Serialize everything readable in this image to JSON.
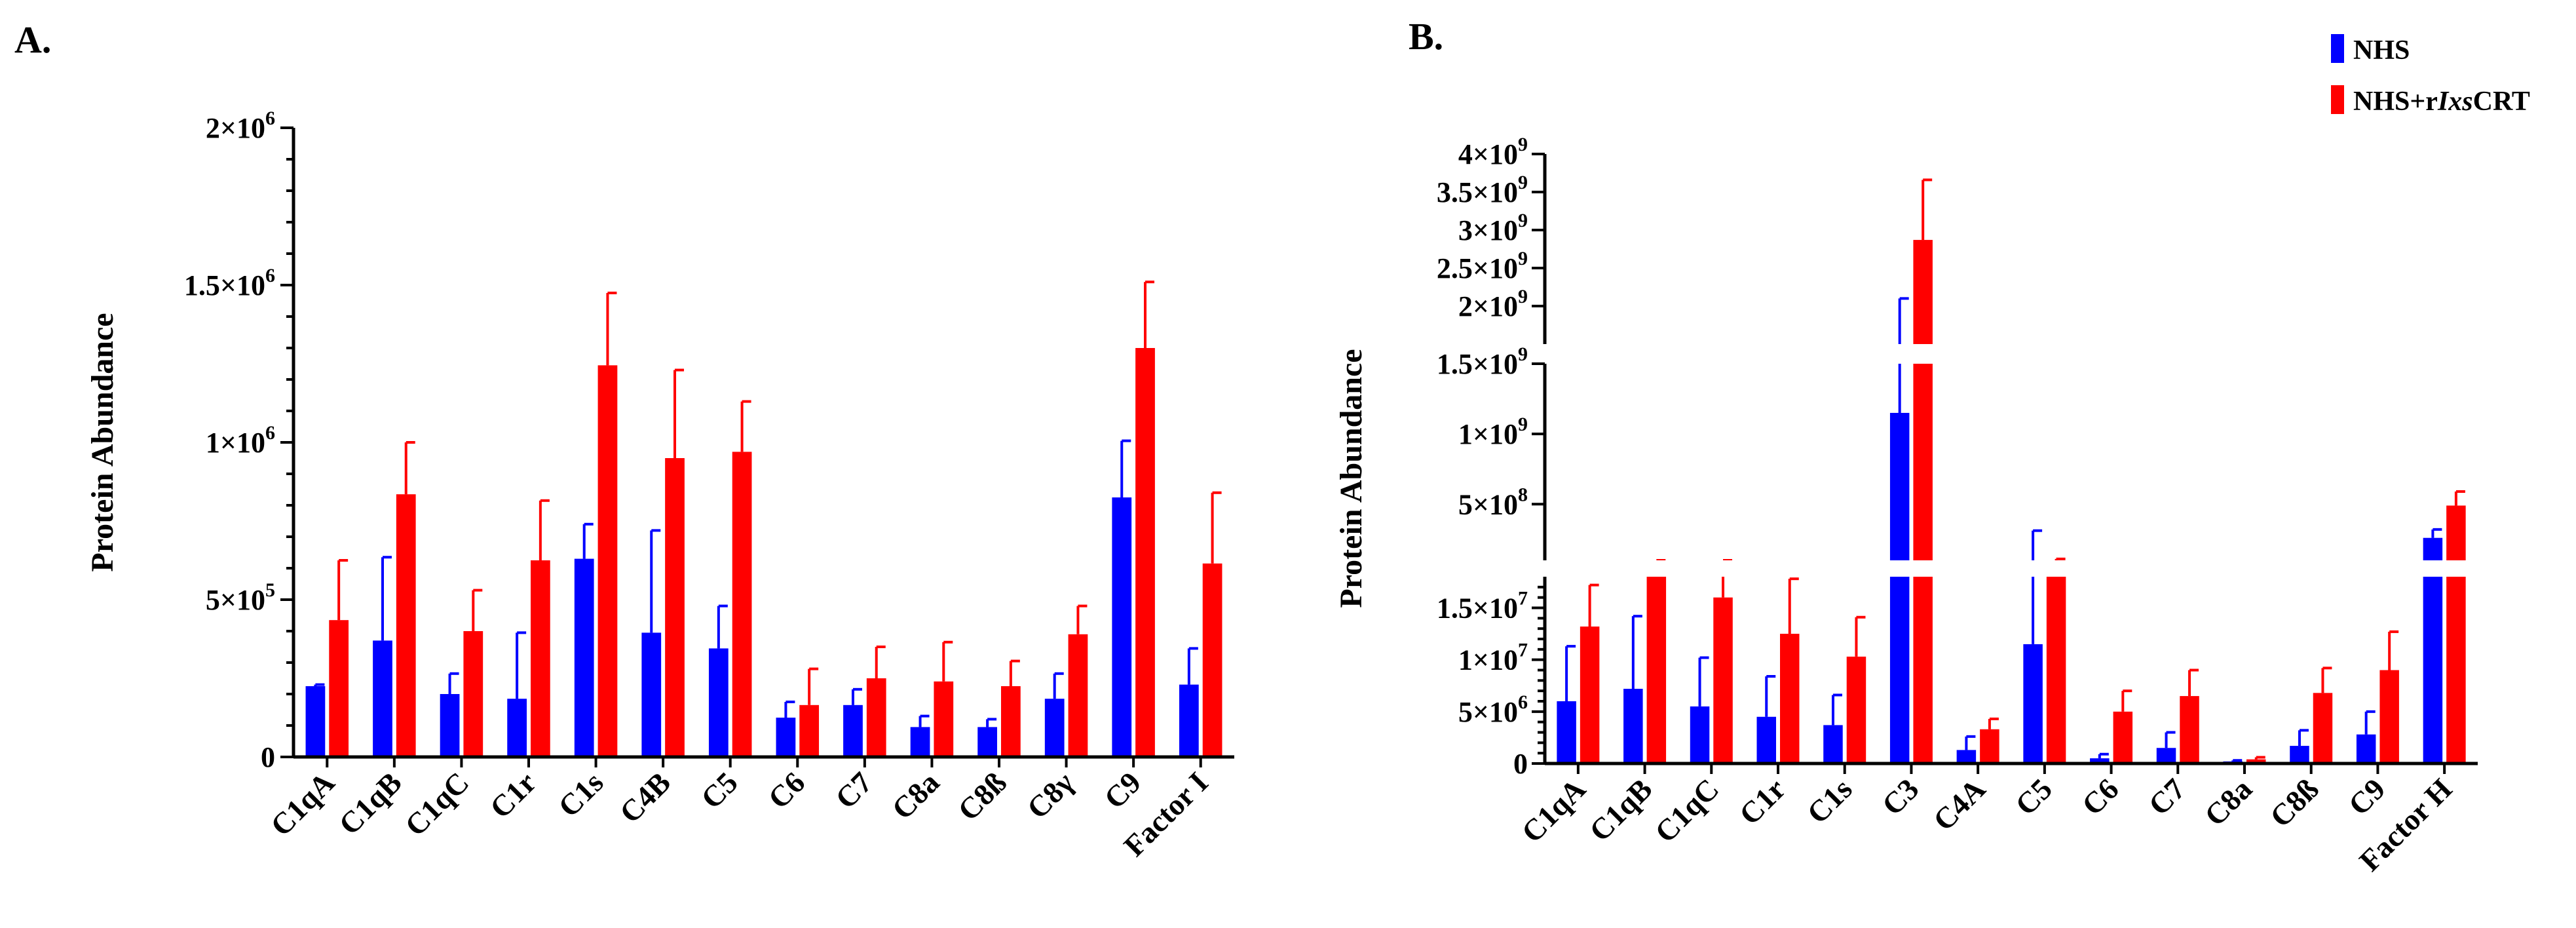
{
  "colors": {
    "nhs": "#0000FF",
    "treated": "#FF0000",
    "axis": "#000000"
  },
  "legend": {
    "entries": [
      {
        "name": "NHS",
        "text": "NHS"
      },
      {
        "name": "NHS+rIxsCRT",
        "prefix": "NHS+r",
        "italic": "Ixs",
        "suffix": "CRT"
      }
    ]
  },
  "chart_data": [
    {
      "type": "bar",
      "panel": "A.",
      "ylabel": "Protein Abundance",
      "ylim": [
        0,
        2000000
      ],
      "yticks": [
        {
          "value": 0,
          "label": "0"
        },
        {
          "value": 500000,
          "label": "5×10",
          "exp": "5"
        },
        {
          "value": 1000000,
          "label": "1×10",
          "exp": "6"
        },
        {
          "value": 1500000,
          "label": "1.5×10",
          "exp": "6"
        },
        {
          "value": 2000000,
          "label": "2×10",
          "exp": "6"
        }
      ],
      "categories": [
        "C1qA",
        "C1qB",
        "C1qC",
        "C1r",
        "C1s",
        "C4B",
        "C5",
        "C6",
        "C7",
        "C8a",
        "C8ß",
        "C8γ",
        "C9",
        "Factor I"
      ],
      "series": [
        {
          "name": "NHS",
          "values": [
            225000,
            370000,
            200000,
            185000,
            630000,
            395000,
            345000,
            125000,
            165000,
            95000,
            95000,
            185000,
            825000,
            230000
          ],
          "errors": [
            5000,
            265000,
            65000,
            210000,
            110000,
            325000,
            135000,
            50000,
            50000,
            35000,
            25000,
            80000,
            180000,
            115000
          ]
        },
        {
          "name": "NHS+rIxsCRT",
          "values": [
            435000,
            835000,
            400000,
            625000,
            1245000,
            950000,
            970000,
            165000,
            250000,
            240000,
            225000,
            390000,
            1300000,
            615000
          ],
          "errors": [
            190000,
            165000,
            130000,
            190000,
            230000,
            280000,
            160000,
            115000,
            100000,
            125000,
            80000,
            90000,
            210000,
            225000
          ]
        }
      ]
    },
    {
      "type": "bar",
      "panel": "B.",
      "ylabel": "Protein Abundance",
      "axis_break": true,
      "segments": [
        {
          "range": [
            0,
            18000000
          ],
          "ticks": [
            {
              "value": 0,
              "label": "0"
            },
            {
              "value": 5000000,
              "label": "5×10",
              "exp": "6"
            },
            {
              "value": 10000000,
              "label": "1×10",
              "exp": "7"
            },
            {
              "value": 15000000,
              "label": "1.5×10",
              "exp": "7"
            }
          ]
        },
        {
          "range": [
            100000000,
            1500000000
          ],
          "ticks": [
            {
              "value": 500000000,
              "label": "5×10",
              "exp": "8"
            },
            {
              "value": 1000000000,
              "label": "1×10",
              "exp": "9"
            },
            {
              "value": 1500000000,
              "label": "1.5×10",
              "exp": "9"
            }
          ]
        },
        {
          "range": [
            1500000000,
            4000000000
          ],
          "ticks": [
            {
              "value": 2000000000,
              "label": "2×10",
              "exp": "9"
            },
            {
              "value": 2500000000,
              "label": "2.5×10",
              "exp": "9"
            },
            {
              "value": 3000000000,
              "label": "3×10",
              "exp": "9"
            },
            {
              "value": 3500000000,
              "label": "3.5×10",
              "exp": "9"
            },
            {
              "value": 4000000000,
              "label": "4×10",
              "exp": "9"
            }
          ]
        }
      ],
      "categories": [
        "C1qA",
        "C1qB",
        "C1qC",
        "C1r",
        "C1s",
        "C3",
        "C4A",
        "C5",
        "C6",
        "C7",
        "C8a",
        "C8ß",
        "C9",
        "Factor H"
      ],
      "series": [
        {
          "name": "NHS",
          "values": [
            6000000,
            7200000,
            5500000,
            4500000,
            3700000,
            1150000000,
            1300000,
            11500000,
            500000,
            1500000,
            200000,
            1700000,
            2800000,
            260000000
          ],
          "errors": [
            5300000,
            7000000,
            4700000,
            3900000,
            2900000,
            950000000,
            1300000,
            300000000,
            400000,
            1500000,
            100000,
            1500000,
            2200000,
            60000000
          ]
        },
        {
          "name": "NHS+rIxsCRT",
          "values": [
            13200000,
            45000000,
            16000000,
            12500000,
            10300000,
            2870000000,
            3300000,
            100000000,
            5000000,
            6500000,
            400000,
            6800000,
            9000000,
            490000000
          ],
          "errors": [
            4000000,
            10000000,
            3000000,
            5300000,
            3800000,
            790000000,
            1000000,
            10000000,
            2000000,
            2500000,
            200000,
            2400000,
            3700000,
            100000000
          ]
        }
      ]
    }
  ]
}
